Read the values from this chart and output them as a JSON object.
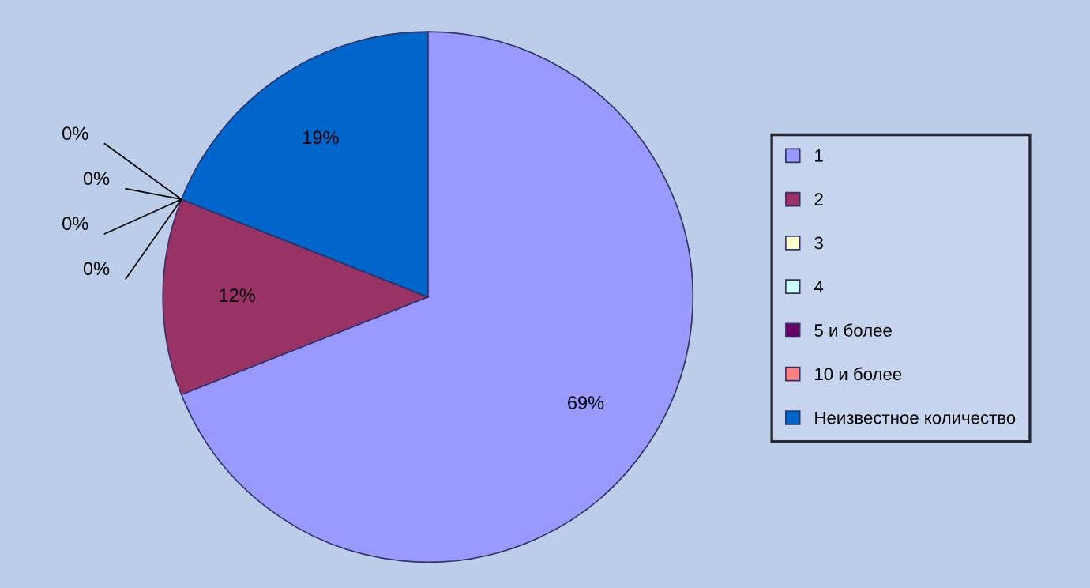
{
  "chart_data": {
    "type": "pie",
    "categories": [
      "1",
      "2",
      "3",
      "4",
      "5 и более",
      "10 и более",
      "Неизвестное количество"
    ],
    "values": [
      69,
      12,
      0,
      0,
      0,
      0,
      19
    ],
    "colors": [
      "#9999ff",
      "#993366",
      "#ffffcc",
      "#ccffff",
      "#660066",
      "#ff8080",
      "#0066cc"
    ],
    "value_labels": [
      "69%",
      "12%",
      "0%",
      "0%",
      "0%",
      "0%",
      "19%"
    ],
    "legend": "right"
  }
}
